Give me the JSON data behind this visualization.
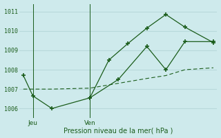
{
  "xlabel": "Pression niveau de la mer( hPa )",
  "background_color": "#ceeaec",
  "grid_color": "#b8d8da",
  "line_color": "#1a5c1a",
  "ylim": [
    1005.5,
    1011.4
  ],
  "yticks": [
    1006,
    1007,
    1008,
    1009,
    1010,
    1011
  ],
  "xlim": [
    -0.2,
    10.2
  ],
  "jeu_x": 0.5,
  "ven_x": 3.5,
  "line1_x": [
    0,
    0.5,
    1.5,
    3.5,
    4.5,
    5.5,
    6.5,
    7.5,
    8.5,
    10.0
  ],
  "line1_y": [
    1007.7,
    1006.65,
    1006.0,
    1006.55,
    1008.5,
    1009.35,
    1010.15,
    1010.85,
    1010.2,
    1009.4
  ],
  "line2_x": [
    3.5,
    5.0,
    6.5,
    7.5,
    8.5,
    10.0
  ],
  "line2_y": [
    1006.55,
    1007.5,
    1009.2,
    1008.0,
    1009.45,
    1009.45
  ],
  "line3_x": [
    0,
    1.5,
    3.5,
    5.0,
    6.5,
    7.5,
    8.5,
    10.0
  ],
  "line3_y": [
    1007.0,
    1007.0,
    1007.05,
    1007.3,
    1007.55,
    1007.7,
    1008.0,
    1008.1
  ],
  "figsize": [
    3.2,
    2.0
  ],
  "dpi": 100
}
